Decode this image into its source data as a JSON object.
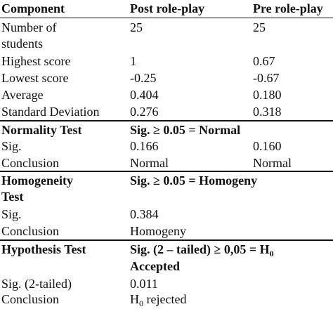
{
  "header": {
    "component": "Component",
    "post": "Post role-play",
    "pre": "Pre role-play"
  },
  "descriptive": {
    "students_label_1": "Number of",
    "students_label_2": "students",
    "students_post": "25",
    "students_pre": "25",
    "highest_label": "Highest score",
    "highest_post": "1",
    "highest_pre": "0.67",
    "lowest_label": "Lowest score",
    "lowest_post": "-0.25",
    "lowest_pre": "-0.67",
    "average_label": "Average",
    "average_post": "0.404",
    "average_pre": "0.180",
    "sd_label": "Standard Deviation",
    "sd_post": "0.276",
    "sd_pre": "0.318"
  },
  "normality": {
    "title": "Normality Test",
    "criterion": "Sig. ≥ 0.05 = Normal",
    "sig_label": "Sig.",
    "sig_post": "0.166",
    "sig_pre": "0.160",
    "conclusion_label": "Conclusion",
    "conclusion_post": "Normal",
    "conclusion_pre": "Normal"
  },
  "homogeneity": {
    "title_1": "Homogeneity",
    "title_2": "Test",
    "criterion": "Sig. ≥ 0.05 = Homogeny",
    "sig_label": "Sig.",
    "sig_value": "0.384",
    "conclusion_label": "Conclusion",
    "conclusion_value": "Homogeny"
  },
  "hypothesis": {
    "title": "Hypothesis Test",
    "criterion_1": "Sig. (2 – tailed) ≥ 0,05 = H",
    "criterion_sub": "0",
    "criterion_2": "Accepted",
    "sig_label": "Sig. (2-tailed)",
    "sig_value": "0.011",
    "conclusion_label": "Conclusion",
    "conclusion_h": "H",
    "conclusion_sub": "0",
    "conclusion_rest": " rejected"
  }
}
